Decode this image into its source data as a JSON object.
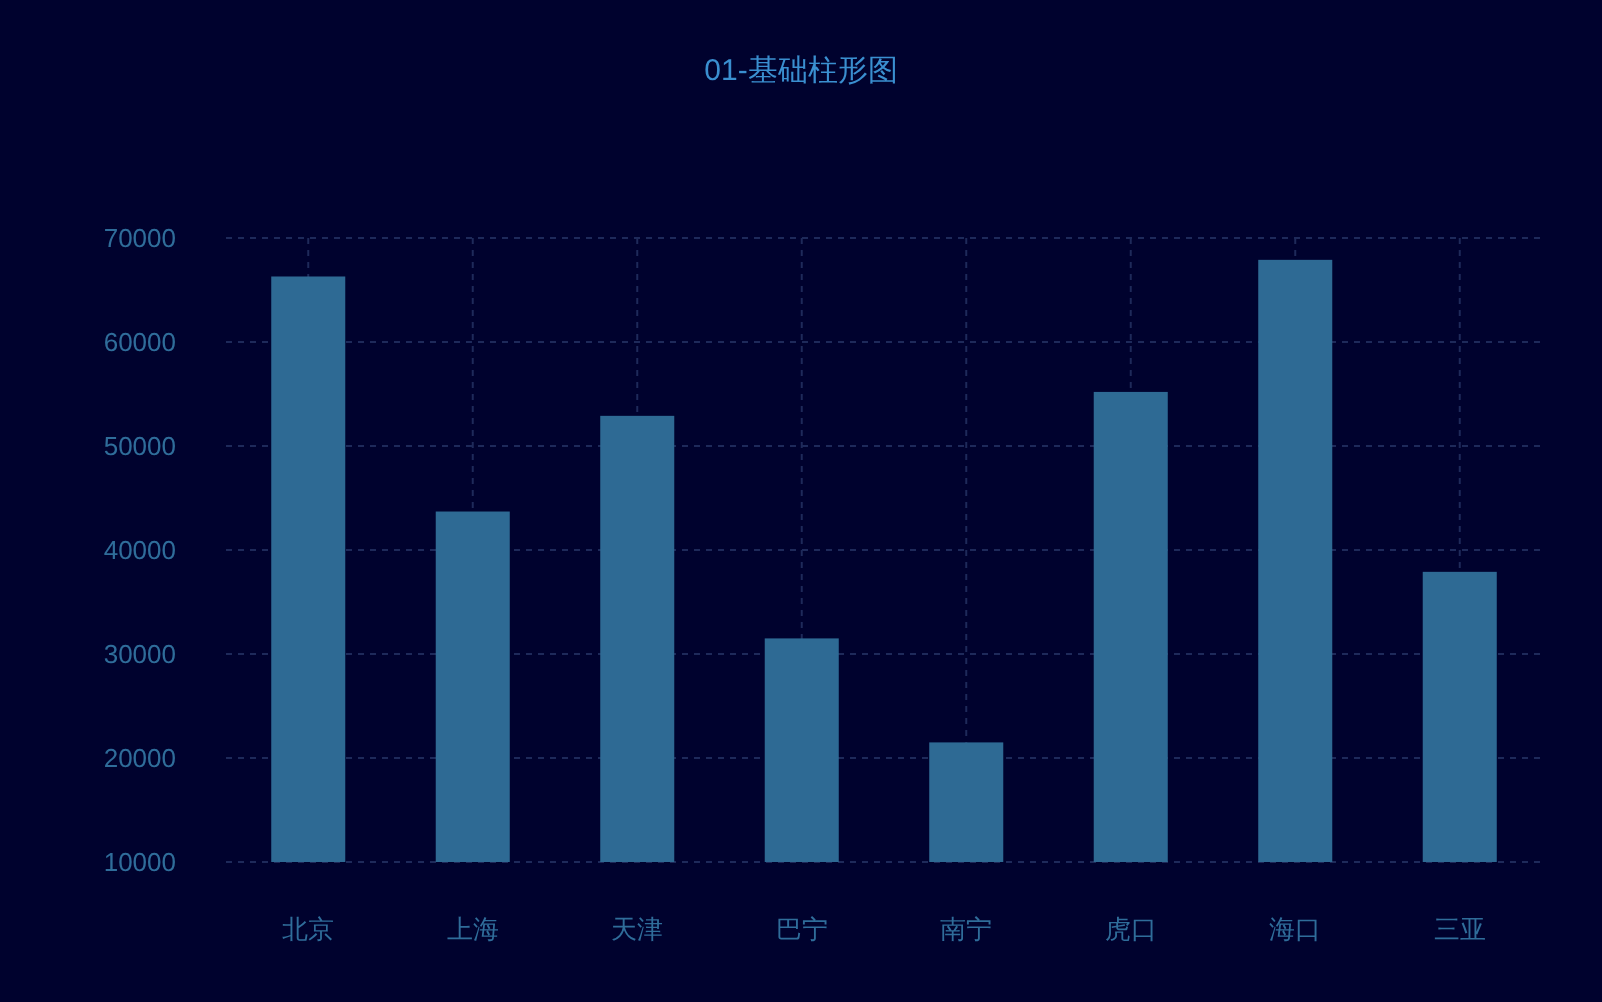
{
  "chart_data": {
    "type": "bar",
    "title": "01-基础柱形图",
    "categories": [
      "北京",
      "上海",
      "天津",
      "巴宁",
      "南宁",
      "虎口",
      "海口",
      "三亚"
    ],
    "values": [
      66300,
      43700,
      52900,
      31500,
      21500,
      55200,
      67900,
      37900
    ],
    "color": "#2e6a94",
    "ylim": [
      10000,
      70000
    ],
    "yticks": [
      10000,
      20000,
      30000,
      40000,
      50000,
      60000,
      70000
    ],
    "grid": true
  }
}
